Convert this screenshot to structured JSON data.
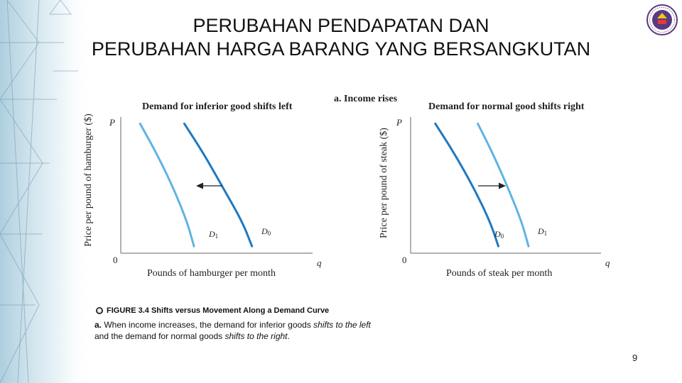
{
  "slide": {
    "title_line1": "PERUBAHAN PENDAPATAN DAN",
    "title_line2": "PERUBAHAN HARGA BARANG YANG BERSANGKUTAN",
    "page_number": "9"
  },
  "caption": {
    "figure_label": "FIGURE 3.4",
    "figure_title": "Shifts versus Movement Along a Demand Curve",
    "part_label": "a.",
    "text_1": " When income increases, the demand for inferior goods ",
    "emph_1": "shifts to the left",
    "text_2": "and the demand for normal goods ",
    "emph_2": "shifts to the right",
    "text_3": "."
  },
  "colors": {
    "original_curve": "#1f78bf",
    "shifted_curve": "#5fb4e2",
    "axis": "#666666"
  },
  "chart_data": [
    {
      "type": "line",
      "panel_label": "a. Income rises",
      "title": "Demand for inferior good shifts left",
      "xlabel": "Pounds of hamburger per month",
      "ylabel": "Price per pound of hamburger ($)",
      "x_axis_symbol": "q",
      "y_axis_symbol": "P",
      "origin_label": "0",
      "shift_direction": "left",
      "series": [
        {
          "name": "D0",
          "role": "original",
          "points": [
            [
              0.46,
              0.92
            ],
            [
              0.6,
              0.7
            ],
            [
              0.74,
              0.45
            ],
            [
              0.88,
              0.2
            ],
            [
              0.95,
              0.02
            ]
          ]
        },
        {
          "name": "D1",
          "role": "shifted",
          "points": [
            [
              0.14,
              0.92
            ],
            [
              0.26,
              0.7
            ],
            [
              0.38,
              0.45
            ],
            [
              0.48,
              0.2
            ],
            [
              0.53,
              0.02
            ]
          ]
        }
      ]
    },
    {
      "type": "line",
      "title": "Demand for normal good shifts right",
      "xlabel": "Pounds of steak per month",
      "ylabel": "Price per pound of steak ($)",
      "x_axis_symbol": "q",
      "y_axis_symbol": "P",
      "origin_label": "0",
      "shift_direction": "right",
      "series": [
        {
          "name": "D0",
          "role": "original",
          "points": [
            [
              0.18,
              0.92
            ],
            [
              0.32,
              0.7
            ],
            [
              0.46,
              0.45
            ],
            [
              0.58,
              0.2
            ],
            [
              0.64,
              0.02
            ]
          ]
        },
        {
          "name": "D1",
          "role": "shifted",
          "points": [
            [
              0.49,
              0.92
            ],
            [
              0.6,
              0.7
            ],
            [
              0.71,
              0.45
            ],
            [
              0.81,
              0.2
            ],
            [
              0.86,
              0.02
            ]
          ]
        }
      ]
    }
  ]
}
